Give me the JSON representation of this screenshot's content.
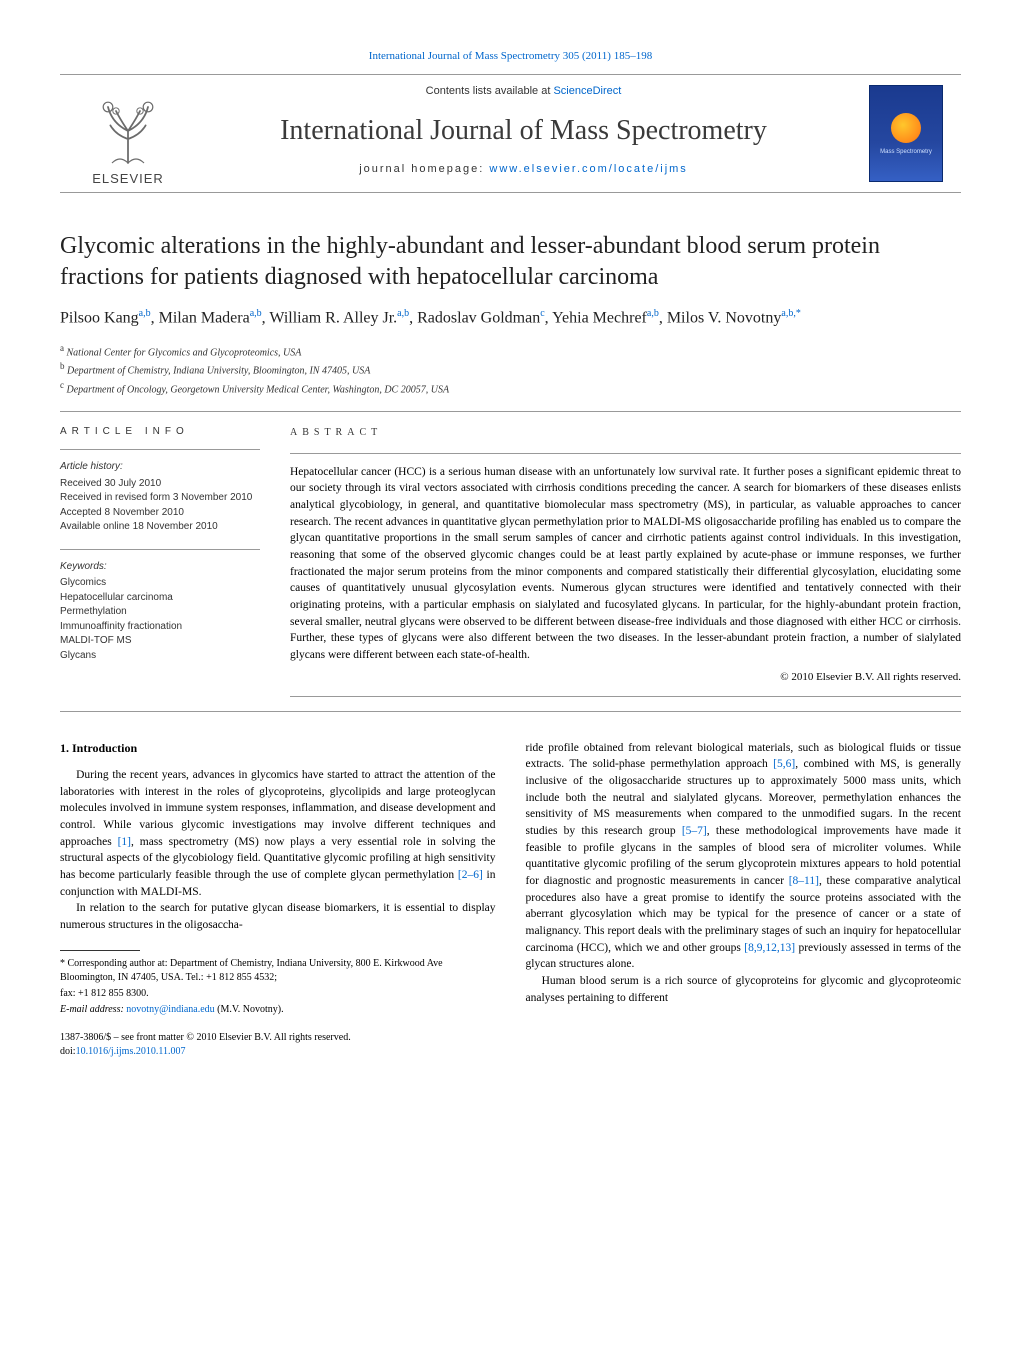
{
  "journal_ref": "International Journal of Mass Spectrometry 305 (2011) 185–198",
  "masthead": {
    "publisher": "ELSEVIER",
    "contents_prefix": "Contents lists available at ",
    "contents_link": "ScienceDirect",
    "journal_title": "International Journal of Mass Spectrometry",
    "homepage_prefix": "journal homepage: ",
    "homepage_link": "www.elsevier.com/locate/ijms",
    "cover_label": "Mass Spectrometry"
  },
  "article": {
    "title": "Glycomic alterations in the highly-abundant and lesser-abundant blood serum protein fractions for patients diagnosed with hepatocellular carcinoma",
    "authors_html": "Pilsoo Kang<sup>a,b</sup>, Milan Madera<sup>a,b</sup>, William R. Alley Jr.<sup>a,b</sup>, Radoslav Goldman<sup>c</sup>, Yehia Mechref<sup>a,b</sup>, Milos V. Novotny<sup>a,b,*</sup>",
    "affiliations": [
      {
        "key": "a",
        "text": "National Center for Glycomics and Glycoproteomics, USA"
      },
      {
        "key": "b",
        "text": "Department of Chemistry, Indiana University, Bloomington, IN 47405, USA"
      },
      {
        "key": "c",
        "text": "Department of Oncology, Georgetown University Medical Center, Washington, DC 20057, USA"
      }
    ]
  },
  "article_info": {
    "heading": "ARTICLE INFO",
    "history_label": "Article history:",
    "history": [
      "Received 30 July 2010",
      "Received in revised form 3 November 2010",
      "Accepted 8 November 2010",
      "Available online 18 November 2010"
    ],
    "keywords_label": "Keywords:",
    "keywords": [
      "Glycomics",
      "Hepatocellular carcinoma",
      "Permethylation",
      "Immunoaffinity fractionation",
      "MALDI-TOF MS",
      "Glycans"
    ]
  },
  "abstract": {
    "heading": "ABSTRACT",
    "text": "Hepatocellular cancer (HCC) is a serious human disease with an unfortunately low survival rate. It further poses a significant epidemic threat to our society through its viral vectors associated with cirrhosis conditions preceding the cancer. A search for biomarkers of these diseases enlists analytical glycobiology, in general, and quantitative biomolecular mass spectrometry (MS), in particular, as valuable approaches to cancer research. The recent advances in quantitative glycan permethylation prior to MALDI-MS oligosaccharide profiling has enabled us to compare the glycan quantitative proportions in the small serum samples of cancer and cirrhotic patients against control individuals. In this investigation, reasoning that some of the observed glycomic changes could be at least partly explained by acute-phase or immune responses, we further fractionated the major serum proteins from the minor components and compared statistically their differential glycosylation, elucidating some causes of quantitatively unusual glycosylation events. Numerous glycan structures were identified and tentatively connected with their originating proteins, with a particular emphasis on sialylated and fucosylated glycans. In particular, for the highly-abundant protein fraction, several smaller, neutral glycans were observed to be different between disease-free individuals and those diagnosed with either HCC or cirrhosis. Further, these types of glycans were also different between the two diseases. In the lesser-abundant protein fraction, a number of sialylated glycans were different between each state-of-health.",
    "copyright": "© 2010 Elsevier B.V. All rights reserved."
  },
  "section1": {
    "heading": "1.  Introduction",
    "p1_a": "During the recent years, advances in glycomics have started to attract the attention of the laboratories with interest in the roles of glycoproteins, glycolipids and large proteoglycan molecules involved in immune system responses, inflammation, and disease development and control. While various glycomic investigations may involve different techniques and approaches ",
    "ref1": "[1]",
    "p1_b": ", mass spectrometry (MS) now plays a very essential role in solving the structural aspects of the glycobiology field. Quantitative glycomic profiling at high sensitivity has become particularly feasible through the use of complete glycan permethylation ",
    "ref2_6": "[2–6]",
    "p1_c": " in conjunction with MALDI-MS.",
    "p2": "In relation to the search for putative glycan disease biomarkers, it is essential to display numerous structures in the oligosaccha-",
    "p3_a": "ride profile obtained from relevant biological materials, such as biological fluids or tissue extracts. The solid-phase permethylation approach ",
    "ref5_6": "[5,6]",
    "p3_b": ", combined with MS, is generally inclusive of the oligosaccharide structures up to approximately 5000 mass units, which include both the neutral and sialylated glycans. Moreover, permethylation enhances the sensitivity of MS measurements when compared to the unmodified sugars. In the recent studies by this research group ",
    "ref5_7": "[5–7]",
    "p3_c": ", these methodological improvements have made it feasible to profile glycans in the samples of blood sera of microliter volumes. While quantitative glycomic profiling of the serum glycoprotein mixtures appears to hold potential for diagnostic and prognostic measurements in cancer ",
    "ref8_11": "[8–11]",
    "p3_d": ", these comparative analytical procedures also have a great promise to identify the source proteins associated with the aberrant glycosylation which may be typical for the presence of cancer or a state of malignancy. This report deals with the preliminary stages of such an inquiry for hepatocellular carcinoma (HCC), which we and other groups ",
    "ref8_9_12_13": "[8,9,12,13]",
    "p3_e": " previously assessed in terms of the glycan structures alone.",
    "p4": "Human blood serum is a rich source of glycoproteins for glycomic and glycoproteomic analyses pertaining to different"
  },
  "footnotes": {
    "corr": "* Corresponding author at: Department of Chemistry, Indiana University, 800 E. Kirkwood Ave Bloomington, IN 47405, USA. Tel.: +1 812 855 4532;",
    "fax": "fax: +1 812 855 8300.",
    "email_label": "E-mail address: ",
    "email": "novotny@indiana.edu",
    "email_tail": " (M.V. Novotny)."
  },
  "footer": {
    "issn": "1387-3806/$ – see front matter © 2010 Elsevier B.V. All rights reserved.",
    "doi_label": "doi:",
    "doi": "10.1016/j.ijms.2010.11.007"
  },
  "colors": {
    "link": "#0066cc",
    "text": "#000000",
    "rule": "#999999",
    "cover_bg_top": "#1a3a8f",
    "cover_bg_bottom": "#3560c4"
  },
  "typography": {
    "title_fontsize_pt": 18,
    "body_fontsize_pt": 9,
    "author_fontsize_pt": 12,
    "affil_fontsize_pt": 7.5
  }
}
